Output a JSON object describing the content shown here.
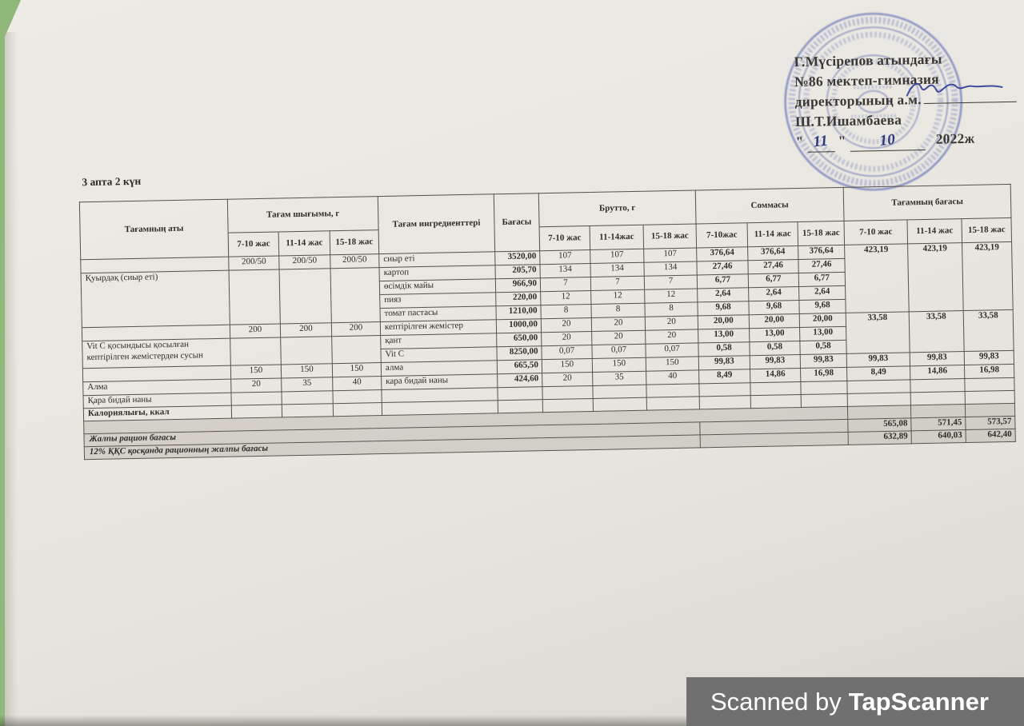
{
  "title": "3 апта 2 күн",
  "watermark": {
    "prefix": "Scanned by",
    "brand": "TapScanner"
  },
  "approval": {
    "line1": "Г.Мүсірепов атындағы",
    "line2": "№86 мектеп-гимназия",
    "line3": "директорының а.м.",
    "line4": "Ш.Т.Ишамбаева",
    "quote": "\"",
    "date_day": "11",
    "date_month": "10",
    "date_year": "2022ж"
  },
  "colors": {
    "paper": "#e9e7e0",
    "background_green": "#8fb87a",
    "stamp_blue": "#3f51ad",
    "ink_blue": "#2e3c96",
    "watermark_bar": "#707070"
  },
  "table": {
    "grid": [
      {
        "cls": "h1",
        "cells": [
          {
            "t": "Тағамның аты",
            "rs": 2,
            "c": "hd"
          },
          {
            "t": "Тағам шығымы, г",
            "cs": 3,
            "c": "hd"
          },
          {
            "t": "Тағам ингредиенттері",
            "rs": 2,
            "c": "hd"
          },
          {
            "t": "Бағасы",
            "rs": 2,
            "c": "hd"
          },
          {
            "t": "Брутто, г",
            "cs": 3,
            "c": "hd"
          },
          {
            "t": "Соммасы",
            "cs": 3,
            "c": "hd"
          },
          {
            "t": "Тағамның бағасы",
            "cs": 3,
            "c": "hd"
          }
        ]
      },
      {
        "cls": "h2",
        "cells": [
          {
            "t": "7-10 жас",
            "c": "hd"
          },
          {
            "t": "11-14 жас",
            "c": "hd"
          },
          {
            "t": "15-18 жас",
            "c": "hd"
          },
          {
            "t": "7-10 жас",
            "c": "hd"
          },
          {
            "t": "11-14жас",
            "c": "hd"
          },
          {
            "t": "15-18 жас",
            "c": "hd"
          },
          {
            "t": "7-10жас",
            "c": "hd"
          },
          {
            "t": "11-14 жас",
            "c": "hd"
          },
          {
            "t": "15-18 жас",
            "c": "hd"
          },
          {
            "t": "7-10 жас",
            "c": "hd"
          },
          {
            "t": "11-14 жас",
            "c": "hd"
          },
          {
            "t": "15-18 жас",
            "c": "hd"
          }
        ]
      },
      {
        "cells": [
          {
            "t": "",
            "c": "nm"
          },
          {
            "t": "200/50"
          },
          {
            "t": "200/50"
          },
          {
            "t": "200/50"
          },
          {
            "t": "сиыр еті",
            "c": "ing"
          },
          {
            "t": "3520,00",
            "c": "pr"
          },
          {
            "t": "107"
          },
          {
            "t": "107"
          },
          {
            "t": "107"
          },
          {
            "t": "376,64",
            "c": "sb"
          },
          {
            "t": "376,64",
            "c": "sb"
          },
          {
            "t": "376,64",
            "c": "sb"
          },
          {
            "t": "423,19",
            "rs": 5,
            "c": "dp"
          },
          {
            "t": "423,19",
            "rs": 5,
            "c": "dp"
          },
          {
            "t": "423,19",
            "rs": 5,
            "c": "dp"
          }
        ]
      },
      {
        "cells": [
          {
            "t": "Қуырдақ (сиыр еті)",
            "rs": 4,
            "c": "nm"
          },
          {
            "t": "",
            "rs": 4
          },
          {
            "t": "",
            "rs": 4
          },
          {
            "t": "",
            "rs": 4
          },
          {
            "t": "картоп",
            "c": "ing"
          },
          {
            "t": "205,70",
            "c": "pr"
          },
          {
            "t": "134"
          },
          {
            "t": "134"
          },
          {
            "t": "134"
          },
          {
            "t": "27,46",
            "c": "sb"
          },
          {
            "t": "27,46",
            "c": "sb"
          },
          {
            "t": "27,46",
            "c": "sb"
          }
        ]
      },
      {
        "cells": [
          {
            "t": "өсімдік майы",
            "c": "ing"
          },
          {
            "t": "966,90",
            "c": "pr"
          },
          {
            "t": "7"
          },
          {
            "t": "7"
          },
          {
            "t": "7"
          },
          {
            "t": "6,77",
            "c": "sb"
          },
          {
            "t": "6,77",
            "c": "sb"
          },
          {
            "t": "6,77",
            "c": "sb"
          }
        ]
      },
      {
        "cells": [
          {
            "t": "пияз",
            "c": "ing"
          },
          {
            "t": "220,00",
            "c": "pr"
          },
          {
            "t": "12"
          },
          {
            "t": "12"
          },
          {
            "t": "12"
          },
          {
            "t": "2,64",
            "c": "sb"
          },
          {
            "t": "2,64",
            "c": "sb"
          },
          {
            "t": "2,64",
            "c": "sb"
          }
        ]
      },
      {
        "cells": [
          {
            "t": "томат пастасы",
            "c": "ing"
          },
          {
            "t": "1210,00",
            "c": "pr"
          },
          {
            "t": "8"
          },
          {
            "t": "8"
          },
          {
            "t": "8"
          },
          {
            "t": "9,68",
            "c": "sb"
          },
          {
            "t": "9,68",
            "c": "sb"
          },
          {
            "t": "9,68",
            "c": "sb"
          }
        ]
      },
      {
        "cells": [
          {
            "t": "",
            "c": "nm"
          },
          {
            "t": "200"
          },
          {
            "t": "200"
          },
          {
            "t": "200"
          },
          {
            "t": "кептірілген жемістер",
            "c": "ing"
          },
          {
            "t": "1000,00",
            "c": "pr"
          },
          {
            "t": "20"
          },
          {
            "t": "20"
          },
          {
            "t": "20"
          },
          {
            "t": "20,00",
            "c": "sb"
          },
          {
            "t": "20,00",
            "c": "sb"
          },
          {
            "t": "20,00",
            "c": "sb"
          },
          {
            "t": "33,58",
            "rs": 3,
            "c": "dp"
          },
          {
            "t": "33,58",
            "rs": 3,
            "c": "dp"
          },
          {
            "t": "33,58",
            "rs": 3,
            "c": "dp"
          }
        ]
      },
      {
        "cells": [
          {
            "t": "Vit C қосындысы қосылған кептірілген жемістерден сусын",
            "rs": 2,
            "c": "nm"
          },
          {
            "t": "",
            "rs": 2
          },
          {
            "t": "",
            "rs": 2
          },
          {
            "t": "",
            "rs": 2
          },
          {
            "t": "қант",
            "c": "ing"
          },
          {
            "t": "650,00",
            "c": "pr"
          },
          {
            "t": "20"
          },
          {
            "t": "20"
          },
          {
            "t": "20"
          },
          {
            "t": "13,00",
            "c": "sb"
          },
          {
            "t": "13,00",
            "c": "sb"
          },
          {
            "t": "13,00",
            "c": "sb"
          }
        ]
      },
      {
        "cells": [
          {
            "t": "Vit C",
            "c": "ing"
          },
          {
            "t": "8250,00",
            "c": "pr"
          },
          {
            "t": "0,07"
          },
          {
            "t": "0,07"
          },
          {
            "t": "0,07"
          },
          {
            "t": "0,58",
            "c": "sb"
          },
          {
            "t": "0,58",
            "c": "sb"
          },
          {
            "t": "0,58",
            "c": "sb"
          }
        ]
      },
      {
        "cells": [
          {
            "t": "",
            "c": "nm"
          },
          {
            "t": "150"
          },
          {
            "t": "150"
          },
          {
            "t": "150"
          },
          {
            "t": "алма",
            "c": "ing"
          },
          {
            "t": "665,50",
            "c": "pr"
          },
          {
            "t": "150"
          },
          {
            "t": "150"
          },
          {
            "t": "150"
          },
          {
            "t": "99,83",
            "c": "sb"
          },
          {
            "t": "99,83",
            "c": "sb"
          },
          {
            "t": "99,83",
            "c": "sb"
          },
          {
            "t": "99,83",
            "c": "dp"
          },
          {
            "t": "99,83",
            "c": "dp"
          },
          {
            "t": "99,83",
            "c": "dp"
          }
        ]
      },
      {
        "cells": [
          {
            "t": "Алма",
            "c": "nm"
          },
          {
            "t": "20"
          },
          {
            "t": "35"
          },
          {
            "t": "40"
          },
          {
            "t": "кара бидай наны",
            "c": "ing"
          },
          {
            "t": "424,60",
            "c": "pr"
          },
          {
            "t": "20"
          },
          {
            "t": "35"
          },
          {
            "t": "40"
          },
          {
            "t": "8,49",
            "c": "sb"
          },
          {
            "t": "14,86",
            "c": "sb"
          },
          {
            "t": "16,98",
            "c": "sb"
          },
          {
            "t": "8,49",
            "c": "dp"
          },
          {
            "t": "14,86",
            "c": "dp"
          },
          {
            "t": "16,98",
            "c": "dp"
          }
        ]
      },
      {
        "cls": "r16",
        "cells": [
          {
            "t": "Қара бидай наны",
            "c": "nm"
          },
          {
            "t": ""
          },
          {
            "t": ""
          },
          {
            "t": ""
          },
          {
            "t": "",
            "c": "ing"
          },
          {
            "t": ""
          },
          {
            "t": ""
          },
          {
            "t": ""
          },
          {
            "t": ""
          },
          {
            "t": ""
          },
          {
            "t": ""
          },
          {
            "t": ""
          },
          {
            "t": ""
          },
          {
            "t": ""
          },
          {
            "t": ""
          }
        ]
      },
      {
        "cls": "r16",
        "cells": [
          {
            "t": "Калориялығы, ккал",
            "c": "nm b"
          },
          {
            "t": ""
          },
          {
            "t": ""
          },
          {
            "t": ""
          },
          {
            "t": "",
            "c": "ing"
          },
          {
            "t": ""
          },
          {
            "t": ""
          },
          {
            "t": ""
          },
          {
            "t": ""
          },
          {
            "t": ""
          },
          {
            "t": ""
          },
          {
            "t": ""
          },
          {
            "t": ""
          },
          {
            "t": ""
          },
          {
            "t": ""
          }
        ]
      },
      {
        "cls": "r16 gy",
        "cells": [
          {
            "t": "",
            "cs": 12
          },
          {
            "t": ""
          },
          {
            "t": ""
          },
          {
            "t": ""
          }
        ]
      },
      {
        "cls": "r16 gy",
        "cells": [
          {
            "t": "Жалпы рацион бағасы",
            "cs": 9,
            "c": "tl"
          },
          {
            "t": "",
            "cs": 3
          },
          {
            "t": "565,08",
            "c": "tv"
          },
          {
            "t": "571,45",
            "c": "tv"
          },
          {
            "t": "573,57",
            "c": "tv"
          }
        ]
      },
      {
        "cls": "r16 gy",
        "cells": [
          {
            "t": "12% ҚҚС қосқанда рационның жалпы бағасы",
            "cs": 9,
            "c": "tl"
          },
          {
            "t": "",
            "cs": 3
          },
          {
            "t": "632,89",
            "c": "tv"
          },
          {
            "t": "640,03",
            "c": "tv"
          },
          {
            "t": "642,40",
            "c": "tv"
          }
        ]
      }
    ]
  }
}
